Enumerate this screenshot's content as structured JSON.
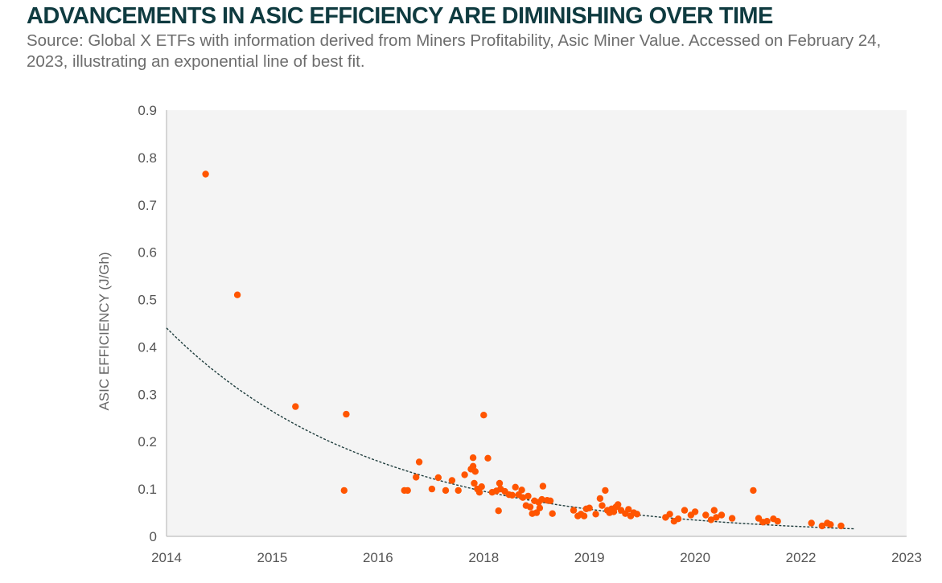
{
  "header": {
    "title": "ADVANCEMENTS IN ASIC EFFICIENCY ARE DIMINISHING OVER TIME",
    "subtitle": "Source: Global X ETFs with information derived from Miners Profitability, Asic Miner Value. Accessed on February 24, 2023, illustrating an exponential line of best fit."
  },
  "colors": {
    "point": "#ff5500",
    "trendline": "#1e3c3c",
    "plot_background": "#f4f4f4",
    "axis": "#bdbdbd"
  },
  "chart_data": {
    "type": "scatter",
    "ylabel": "ASIC EFFICIENCY (J/Gh)",
    "xlabel": "",
    "ylim": [
      0,
      0.9
    ],
    "xlim": [
      0,
      7
    ],
    "y_ticks": [
      "0",
      "0.1",
      "0.2",
      "0.3",
      "0.4",
      "0.5",
      "0.6",
      "0.7",
      "0.8",
      "0.9"
    ],
    "x_ticks": [
      "2014",
      "2015",
      "2016",
      "2018",
      "2019",
      "2020",
      "2022",
      "2023"
    ],
    "grid": false,
    "legend": "none",
    "trendline": {
      "type": "exponential",
      "start": 0.44,
      "end": 0.016
    },
    "points": [
      [
        0.37,
        0.765
      ],
      [
        0.67,
        0.51
      ],
      [
        1.22,
        0.274
      ],
      [
        1.7,
        0.258
      ],
      [
        1.68,
        0.097
      ],
      [
        2.25,
        0.097
      ],
      [
        2.28,
        0.097
      ],
      [
        2.36,
        0.125
      ],
      [
        2.39,
        0.157
      ],
      [
        2.51,
        0.1
      ],
      [
        2.57,
        0.124
      ],
      [
        2.64,
        0.097
      ],
      [
        2.7,
        0.118
      ],
      [
        2.76,
        0.097
      ],
      [
        2.82,
        0.13
      ],
      [
        2.88,
        0.142
      ],
      [
        2.9,
        0.148
      ],
      [
        2.9,
        0.166
      ],
      [
        2.92,
        0.137
      ],
      [
        2.91,
        0.112
      ],
      [
        2.94,
        0.1
      ],
      [
        2.96,
        0.093
      ],
      [
        2.98,
        0.105
      ],
      [
        3.0,
        0.256
      ],
      [
        3.04,
        0.165
      ],
      [
        3.08,
        0.093
      ],
      [
        3.12,
        0.096
      ],
      [
        3.15,
        0.112
      ],
      [
        3.16,
        0.1
      ],
      [
        3.14,
        0.054
      ],
      [
        3.2,
        0.095
      ],
      [
        3.24,
        0.088
      ],
      [
        3.27,
        0.087
      ],
      [
        3.3,
        0.104
      ],
      [
        3.33,
        0.088
      ],
      [
        3.36,
        0.098
      ],
      [
        3.37,
        0.082
      ],
      [
        3.4,
        0.065
      ],
      [
        3.42,
        0.085
      ],
      [
        3.44,
        0.062
      ],
      [
        3.46,
        0.048
      ],
      [
        3.48,
        0.075
      ],
      [
        3.5,
        0.05
      ],
      [
        3.52,
        0.072
      ],
      [
        3.53,
        0.06
      ],
      [
        3.55,
        0.078
      ],
      [
        3.56,
        0.106
      ],
      [
        3.6,
        0.076
      ],
      [
        3.63,
        0.075
      ],
      [
        3.65,
        0.048
      ],
      [
        3.85,
        0.055
      ],
      [
        3.89,
        0.043
      ],
      [
        3.92,
        0.047
      ],
      [
        3.95,
        0.043
      ],
      [
        3.97,
        0.058
      ],
      [
        4.0,
        0.06
      ],
      [
        4.06,
        0.047
      ],
      [
        4.1,
        0.08
      ],
      [
        4.12,
        0.065
      ],
      [
        4.15,
        0.097
      ],
      [
        4.17,
        0.055
      ],
      [
        4.19,
        0.05
      ],
      [
        4.21,
        0.058
      ],
      [
        4.23,
        0.052
      ],
      [
        4.25,
        0.062
      ],
      [
        4.27,
        0.067
      ],
      [
        4.3,
        0.055
      ],
      [
        4.34,
        0.048
      ],
      [
        4.37,
        0.057
      ],
      [
        4.39,
        0.043
      ],
      [
        4.42,
        0.05
      ],
      [
        4.45,
        0.047
      ],
      [
        4.72,
        0.04
      ],
      [
        4.76,
        0.047
      ],
      [
        4.8,
        0.032
      ],
      [
        4.84,
        0.037
      ],
      [
        4.9,
        0.055
      ],
      [
        4.96,
        0.045
      ],
      [
        5.0,
        0.052
      ],
      [
        5.1,
        0.045
      ],
      [
        5.15,
        0.035
      ],
      [
        5.18,
        0.055
      ],
      [
        5.2,
        0.04
      ],
      [
        5.25,
        0.045
      ],
      [
        5.35,
        0.038
      ],
      [
        5.55,
        0.097
      ],
      [
        5.6,
        0.038
      ],
      [
        5.64,
        0.03
      ],
      [
        5.68,
        0.032
      ],
      [
        5.74,
        0.037
      ],
      [
        5.78,
        0.032
      ],
      [
        6.1,
        0.028
      ],
      [
        6.2,
        0.022
      ],
      [
        6.25,
        0.028
      ],
      [
        6.28,
        0.025
      ],
      [
        6.38,
        0.022
      ]
    ]
  }
}
